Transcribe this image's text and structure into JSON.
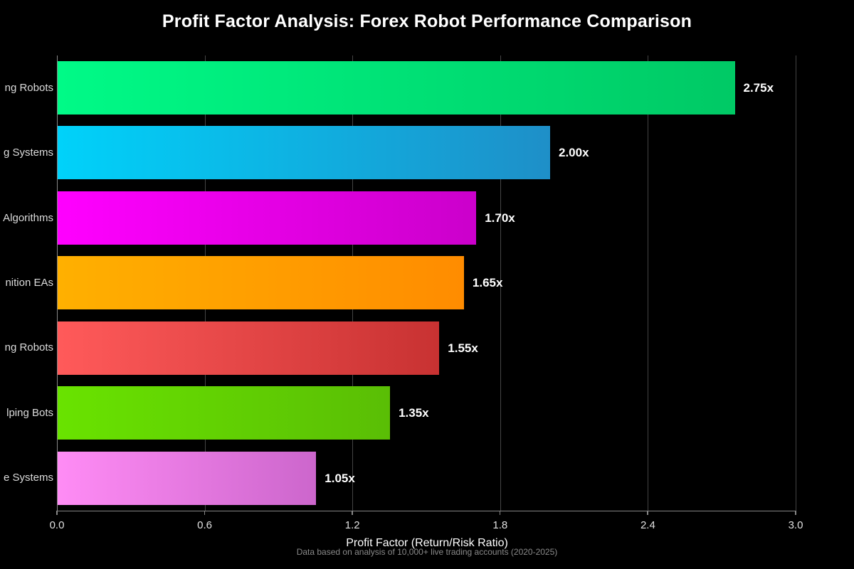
{
  "title": "Profit Factor Analysis: Forex Robot Performance Comparison",
  "chart_data": {
    "type": "bar",
    "orientation": "horizontal",
    "title": "Profit Factor Analysis: Forex Robot Performance Comparison",
    "xlabel": "Profit Factor (Return/Risk Ratio)",
    "footnote": "Data based on analysis of 10,000+ live trading accounts (2020-2025)",
    "xlim": [
      0.0,
      3.0
    ],
    "xticks": [
      "0.0",
      "0.6",
      "1.2",
      "1.8",
      "2.4",
      "3.0"
    ],
    "xtick_values": [
      0.0,
      0.6,
      1.2,
      1.8,
      2.4,
      3.0
    ],
    "grid": true,
    "legend": false,
    "background": "#000000",
    "categories": [
      "ng Robots",
      "g Systems",
      "Algorithms",
      "nition EAs",
      "ng Robots",
      "lping Bots",
      "e Systems"
    ],
    "values": [
      2.75,
      2.0,
      1.7,
      1.65,
      1.55,
      1.35,
      1.05
    ],
    "value_labels": [
      "2.75x",
      "2.00x",
      "1.70x",
      "1.65x",
      "1.55x",
      "1.35x",
      "1.05x"
    ],
    "bar_gradients": [
      {
        "start": "#00fa87",
        "end": "#00c965"
      },
      {
        "start": "#00d2fa",
        "end": "#1e8fc8"
      },
      {
        "start": "#ff00ff",
        "end": "#cb00cb"
      },
      {
        "start": "#ffb000",
        "end": "#ff8c00"
      },
      {
        "start": "#ff5a5a",
        "end": "#c83232"
      },
      {
        "start": "#69e300",
        "end": "#5abe05"
      },
      {
        "start": "#ff8cf5",
        "end": "#cc66cc"
      }
    ],
    "colors": {
      "axis_spine": "#888888",
      "gridline": "#454545",
      "tick_label": "#e0e0e0",
      "category_label": "#dcdcdc",
      "value_label": "#ffffff",
      "title": "#ffffff",
      "footnote": "#8a8a8a"
    }
  }
}
